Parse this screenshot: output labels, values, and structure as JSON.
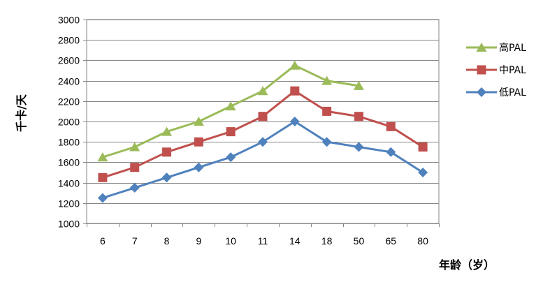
{
  "chart_data": {
    "type": "line",
    "title": "",
    "xlabel": "年龄（岁）",
    "ylabel": "千卡/天",
    "categories": [
      "6",
      "7",
      "8",
      "9",
      "10",
      "11",
      "14",
      "18",
      "50",
      "65",
      "80"
    ],
    "ylim": [
      1000,
      3000
    ],
    "yticks": [
      "1000",
      "1200",
      "1400",
      "1600",
      "1800",
      "2000",
      "2200",
      "2400",
      "2600",
      "2800",
      "3000"
    ],
    "grid": true,
    "legend_position": "right",
    "series": [
      {
        "name": "高PAL",
        "color": "#9bbb59",
        "marker": "triangle",
        "values": [
          1650,
          1750,
          1900,
          2000,
          2150,
          2300,
          2550,
          2400,
          2350,
          null,
          null
        ]
      },
      {
        "name": "中PAL",
        "color": "#c0504d",
        "marker": "square",
        "values": [
          1450,
          1550,
          1700,
          1800,
          1900,
          2050,
          2300,
          2100,
          2050,
          1950,
          1750
        ]
      },
      {
        "name": "低PAL",
        "color": "#4f81bd",
        "marker": "diamond",
        "values": [
          1250,
          1350,
          1450,
          1550,
          1650,
          1800,
          2000,
          1800,
          1750,
          1700,
          1500
        ]
      }
    ]
  }
}
